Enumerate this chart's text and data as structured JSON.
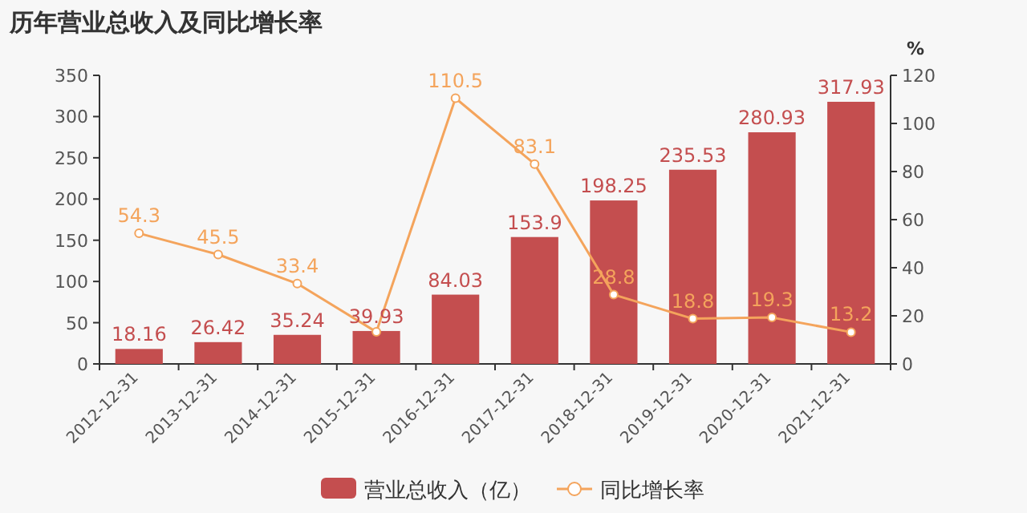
{
  "chart_data": {
    "type": "bar",
    "title": "历年营业总收入及同比增长率",
    "y2label": "%",
    "categories": [
      "2012-12-31",
      "2013-12-31",
      "2014-12-31",
      "2015-12-31",
      "2016-12-31",
      "2017-12-31",
      "2018-12-31",
      "2019-12-31",
      "2020-12-31",
      "2021-12-31"
    ],
    "series": [
      {
        "name": "营业总收入（亿）",
        "color": "#c44e4f",
        "values": [
          18.16,
          26.42,
          35.24,
          39.93,
          84.03,
          153.9,
          198.25,
          235.53,
          280.93,
          317.93
        ],
        "value_labels": [
          "18.16",
          "26.42",
          "35.24",
          "39.93",
          "84.03",
          "153.9",
          "198.25",
          "235.53",
          "280.93",
          "317.93"
        ]
      },
      {
        "name": "同比增长率",
        "type": "line",
        "axis": "y2",
        "color": "#f4a45c",
        "marker": "circle",
        "values": [
          54.3,
          45.5,
          33.4,
          13.3,
          110.5,
          83.1,
          28.8,
          18.8,
          19.3,
          13.2
        ],
        "value_labels": [
          "54.3",
          "45.5",
          "33.4",
          null,
          "110.5",
          "83.1",
          "28.8",
          "18.8",
          "19.3",
          "13.2"
        ]
      }
    ],
    "ylim": [
      0,
      350
    ],
    "yticks": [
      0,
      50,
      100,
      150,
      200,
      250,
      300,
      350
    ],
    "y2lim": [
      0,
      120
    ],
    "y2ticks": [
      0,
      20,
      40,
      60,
      80,
      100,
      120
    ],
    "grid": false,
    "legend": "bottom"
  }
}
